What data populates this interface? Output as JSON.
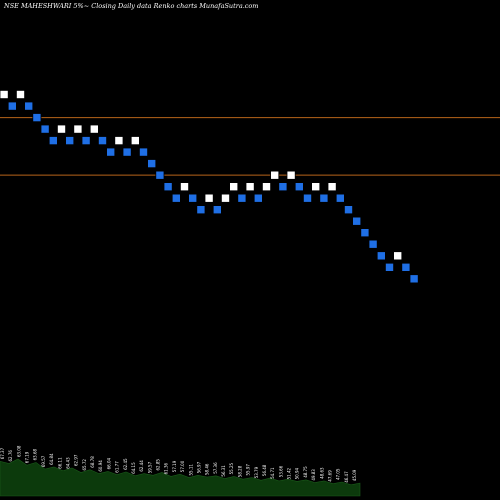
{
  "title": "NSE MAHESHWARI 5%~  Closing Daily data  Renko  charts MunafaSutra.com",
  "colors": {
    "background": "#000000",
    "up_brick": "#ffffff",
    "down_brick": "#1f6fe5",
    "brick_border": "#000000",
    "reference_line": "#b8641a",
    "volume_fill": "#0c3a0c",
    "label_text": "#ffffff"
  },
  "chart_data": {
    "type": "renko",
    "title": "NSE MAHESHWARI 5%~  Closing Daily data  Renko  charts MunafaSutra.com",
    "xlabel": "",
    "ylabel": "",
    "grid": false,
    "reference_lines": [
      {
        "level": 8.0
      },
      {
        "level": 3.0
      }
    ],
    "y_range": [
      -20,
      13
    ],
    "bricks": [
      {
        "dir": "up",
        "level": 10
      },
      {
        "dir": "down",
        "level": 9
      },
      {
        "dir": "up",
        "level": 10
      },
      {
        "dir": "down",
        "level": 9
      },
      {
        "dir": "down",
        "level": 8
      },
      {
        "dir": "down",
        "level": 7
      },
      {
        "dir": "down",
        "level": 6
      },
      {
        "dir": "up",
        "level": 7
      },
      {
        "dir": "down",
        "level": 6
      },
      {
        "dir": "up",
        "level": 7
      },
      {
        "dir": "down",
        "level": 6
      },
      {
        "dir": "up",
        "level": 7
      },
      {
        "dir": "down",
        "level": 6
      },
      {
        "dir": "down",
        "level": 5
      },
      {
        "dir": "up",
        "level": 6
      },
      {
        "dir": "down",
        "level": 5
      },
      {
        "dir": "up",
        "level": 6
      },
      {
        "dir": "down",
        "level": 5
      },
      {
        "dir": "down",
        "level": 4
      },
      {
        "dir": "down",
        "level": 3
      },
      {
        "dir": "down",
        "level": 2
      },
      {
        "dir": "down",
        "level": 1
      },
      {
        "dir": "up",
        "level": 2
      },
      {
        "dir": "down",
        "level": 1
      },
      {
        "dir": "down",
        "level": 0
      },
      {
        "dir": "up",
        "level": 1
      },
      {
        "dir": "down",
        "level": 0
      },
      {
        "dir": "up",
        "level": 1
      },
      {
        "dir": "up",
        "level": 2
      },
      {
        "dir": "down",
        "level": 1
      },
      {
        "dir": "up",
        "level": 2
      },
      {
        "dir": "down",
        "level": 1
      },
      {
        "dir": "up",
        "level": 2
      },
      {
        "dir": "up",
        "level": 3
      },
      {
        "dir": "down",
        "level": 2
      },
      {
        "dir": "up",
        "level": 3
      },
      {
        "dir": "down",
        "level": 2
      },
      {
        "dir": "down",
        "level": 1
      },
      {
        "dir": "up",
        "level": 2
      },
      {
        "dir": "down",
        "level": 1
      },
      {
        "dir": "up",
        "level": 2
      },
      {
        "dir": "down",
        "level": 1
      },
      {
        "dir": "down",
        "level": 0
      },
      {
        "dir": "down",
        "level": -1
      },
      {
        "dir": "down",
        "level": -2
      },
      {
        "dir": "down",
        "level": -3
      },
      {
        "dir": "down",
        "level": -4
      },
      {
        "dir": "down",
        "level": -5
      },
      {
        "dir": "up",
        "level": -4
      },
      {
        "dir": "down",
        "level": -5
      },
      {
        "dir": "down",
        "level": -6
      }
    ],
    "volume_profile": [
      0.62,
      0.58,
      0.66,
      0.55,
      0.6,
      0.48,
      0.52,
      0.45,
      0.5,
      0.42,
      0.47,
      0.4,
      0.44,
      0.38,
      0.43,
      0.36,
      0.4,
      0.37,
      0.42,
      0.35,
      0.39,
      0.33,
      0.37,
      0.34,
      0.36,
      0.31,
      0.35,
      0.3,
      0.33,
      0.28,
      0.32,
      0.27,
      0.3,
      0.26,
      0.29,
      0.24,
      0.27,
      0.22,
      0.25,
      0.2,
      0.23
    ],
    "bottom_labels": [
      "67.37",
      "62.76",
      "63.08",
      "67.19",
      "63.68",
      "69.57",
      "64.84",
      "66.11",
      "64.43",
      "62.97",
      "65.72",
      "68.78",
      "60.94",
      "66.04",
      "61.77",
      "62.45",
      "64.15",
      "62.44",
      "59.57",
      "62.85",
      "61.36",
      "57.19",
      "57.00",
      "55.11",
      "56.97",
      "58.46",
      "57.36",
      "56.31",
      "55.25",
      "58.28",
      "55.97",
      "53.79",
      "56.48",
      "54.71",
      "53.66",
      "51.42",
      "50.94",
      "48.75",
      "49.83",
      "48.63",
      "47.69",
      "47.05",
      "46.47",
      "45.09"
    ]
  }
}
